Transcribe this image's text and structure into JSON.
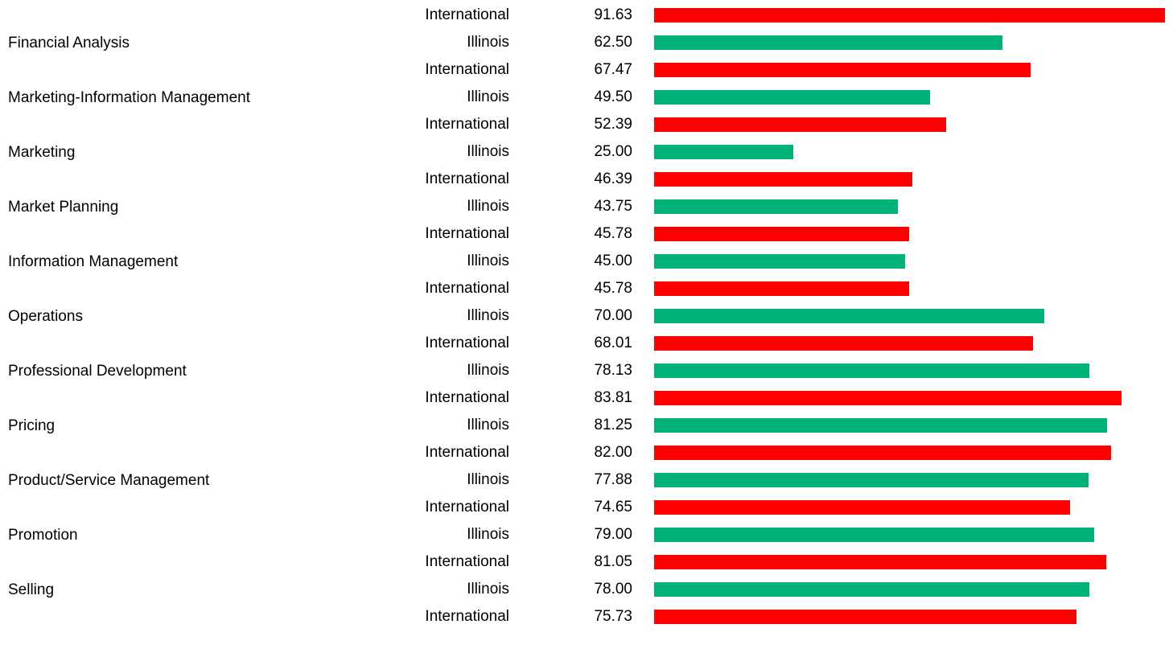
{
  "chart_data": {
    "type": "bar",
    "orientation": "horizontal",
    "xlim": [
      0,
      100
    ],
    "colors": {
      "Illinois": "#00b27a",
      "International": "#ff0000"
    },
    "rows": [
      {
        "category": null,
        "region": "International",
        "value": 91.63,
        "value_label": "91.63"
      },
      {
        "category": "Financial Analysis",
        "region": "Illinois",
        "value": 62.5,
        "value_label": "62.50"
      },
      {
        "category": null,
        "region": "International",
        "value": 67.47,
        "value_label": "67.47"
      },
      {
        "category": "Marketing-Information Management",
        "region": "Illinois",
        "value": 49.5,
        "value_label": "49.50"
      },
      {
        "category": null,
        "region": "International",
        "value": 52.39,
        "value_label": "52.39"
      },
      {
        "category": "Marketing",
        "region": "Illinois",
        "value": 25,
        "value_label": "25.00"
      },
      {
        "category": null,
        "region": "International",
        "value": 46.39,
        "value_label": "46.39"
      },
      {
        "category": "Market Planning",
        "region": "Illinois",
        "value": 43.75,
        "value_label": "43.75"
      },
      {
        "category": null,
        "region": "International",
        "value": 45.78,
        "value_label": "45.78"
      },
      {
        "category": "Information Management",
        "region": "Illinois",
        "value": 45,
        "value_label": "45.00"
      },
      {
        "category": null,
        "region": "International",
        "value": 45.78,
        "value_label": "45.78"
      },
      {
        "category": "Operations",
        "region": "Illinois",
        "value": 70,
        "value_label": "70.00"
      },
      {
        "category": null,
        "region": "International",
        "value": 68.01,
        "value_label": "68.01"
      },
      {
        "category": "Professional Development",
        "region": "Illinois",
        "value": 78.13,
        "value_label": "78.13"
      },
      {
        "category": null,
        "region": "International",
        "value": 83.81,
        "value_label": "83.81"
      },
      {
        "category": "Pricing",
        "region": "Illinois",
        "value": 81.25,
        "value_label": "81.25"
      },
      {
        "category": null,
        "region": "International",
        "value": 82,
        "value_label": "82.00"
      },
      {
        "category": "Product/Service Management",
        "region": "Illinois",
        "value": 77.88,
        "value_label": "77.88"
      },
      {
        "category": null,
        "region": "International",
        "value": 74.65,
        "value_label": "74.65"
      },
      {
        "category": "Promotion",
        "region": "Illinois",
        "value": 79,
        "value_label": "79.00"
      },
      {
        "category": null,
        "region": "International",
        "value": 81.05,
        "value_label": "81.05"
      },
      {
        "category": "Selling",
        "region": "Illinois",
        "value": 78,
        "value_label": "78.00"
      },
      {
        "category": null,
        "region": "International",
        "value": 75.73,
        "value_label": "75.73"
      }
    ]
  }
}
